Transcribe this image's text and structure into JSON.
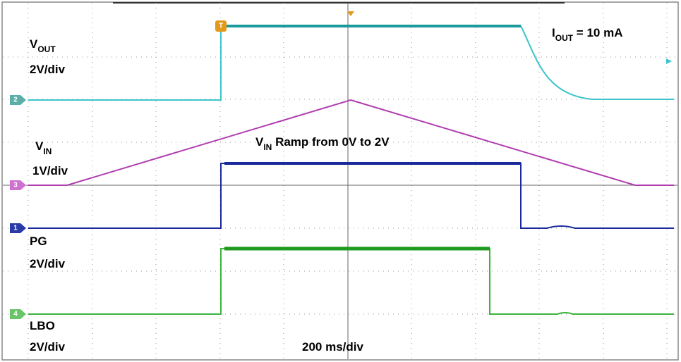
{
  "traces": [
    {
      "name": "V",
      "name_sub": "OUT",
      "scale": "2V/div",
      "marker": "2"
    },
    {
      "name": "V",
      "name_sub": "IN",
      "scale": "1V/div",
      "marker": "3"
    },
    {
      "name": "PG",
      "scale": "2V/div",
      "marker": "1"
    },
    {
      "name": "LBO",
      "scale": "2V/div",
      "marker": "4"
    }
  ],
  "annotations": {
    "load": {
      "main": "I",
      "sub": "OUT",
      "rest": " = 10 mA"
    },
    "ramp": {
      "main": "V",
      "sub": "IN",
      "rest": " Ramp from 0V to 2V"
    },
    "timebase": "200 ms/div",
    "trigger": "T"
  }
}
